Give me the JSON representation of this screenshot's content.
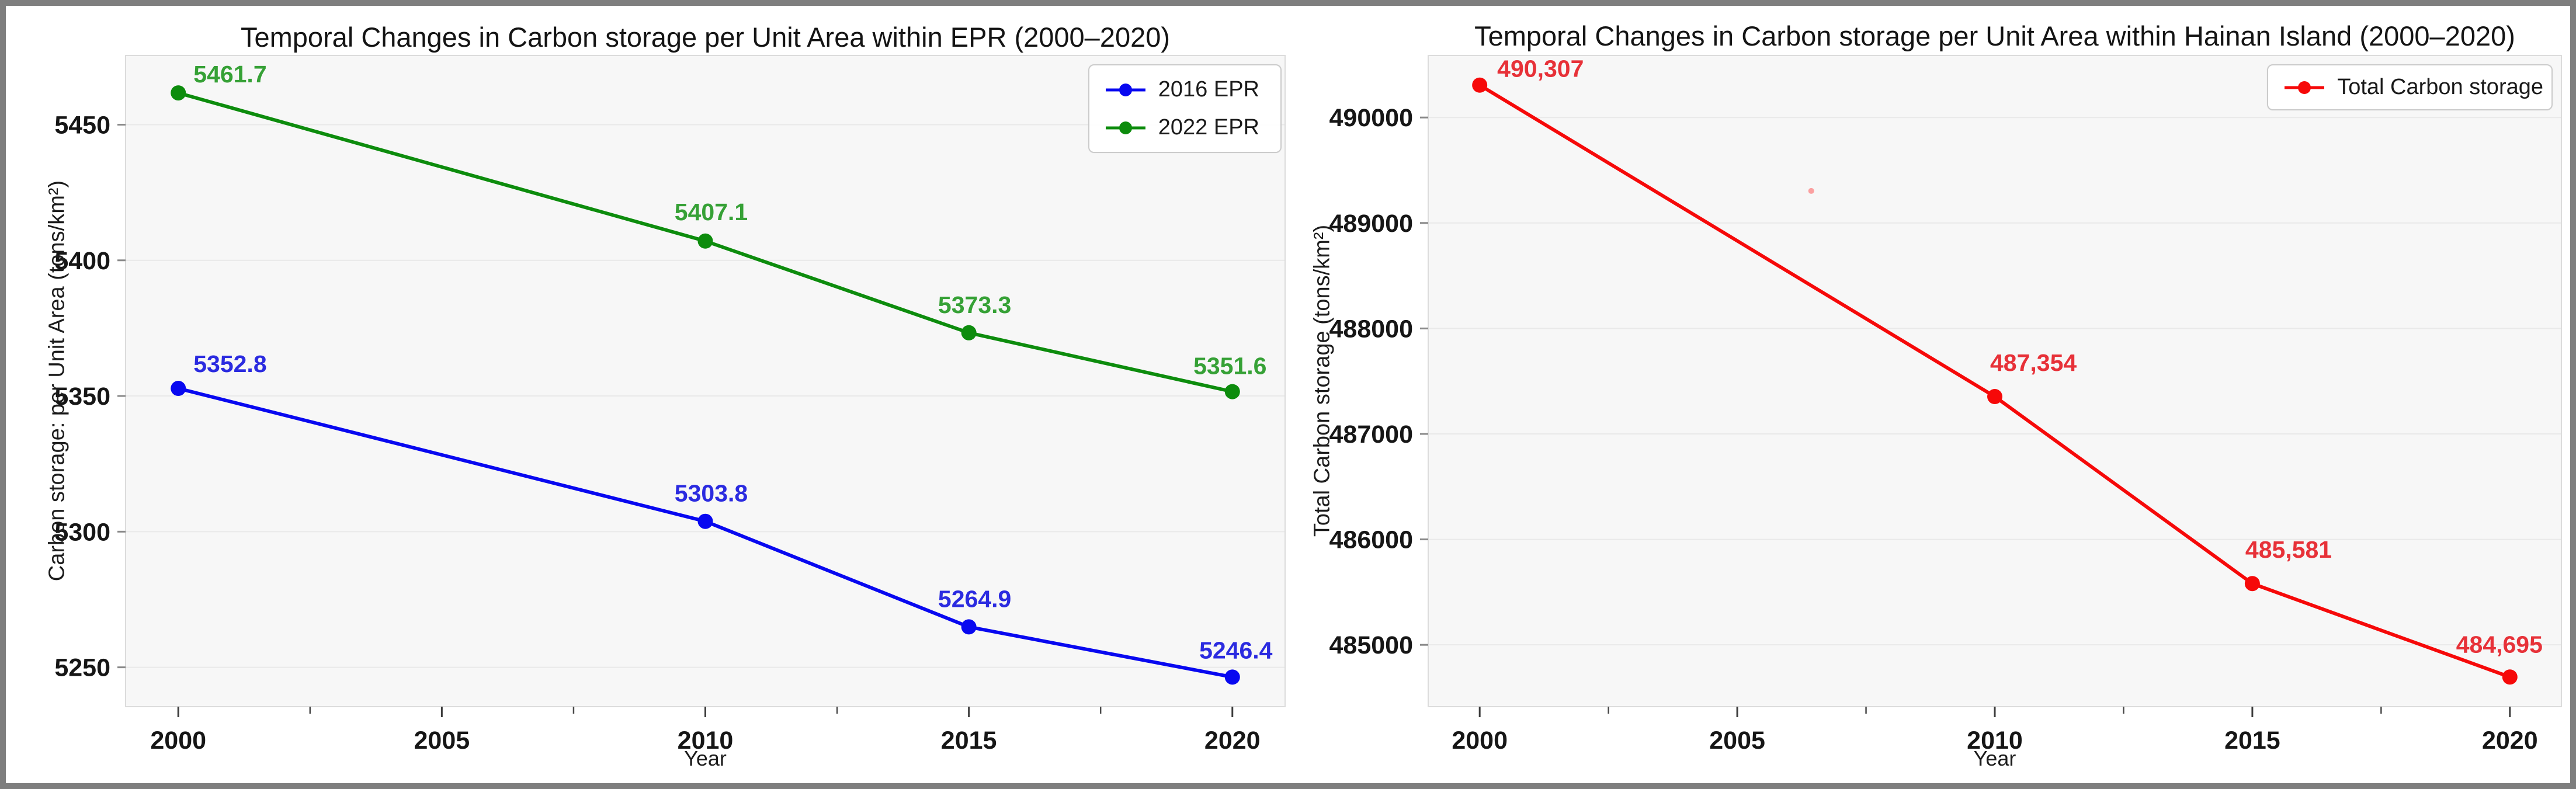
{
  "page": {
    "frame_color": "#7e7e7e",
    "background": "#ffffff"
  },
  "chart_data": [
    {
      "type": "line",
      "title": "Temporal Changes in Carbon storage per Unit Area within EPR (2000–2020)",
      "xlabel": "Year",
      "ylabel": "Carbon storage: per Unit Area (tons/km²)",
      "x": [
        2000,
        2010,
        2015,
        2020
      ],
      "xlim": [
        1999,
        2021
      ],
      "ylim": [
        5235.5,
        5475.5
      ],
      "xticks": [
        2000,
        2005,
        2010,
        2015,
        2020
      ],
      "minor_xticks": [
        2002.5,
        2007.5,
        2012.5,
        2017.5
      ],
      "yticks": [
        5250,
        5300,
        5350,
        5400,
        5450
      ],
      "grid": "horizontal",
      "legend_position": "top-right",
      "plot_bg": "#f7f7f7",
      "series": [
        {
          "name": "2016 EPR",
          "color": "#0808f0",
          "label_color": "#2b2be0",
          "values": [
            5352.8,
            5303.8,
            5264.9,
            5246.4
          ],
          "labels": [
            "5352.8",
            "5303.8",
            "5264.9",
            "5246.4"
          ],
          "label_anchors": [
            "start",
            "middle",
            "middle",
            "middle"
          ],
          "label_dx": [
            26,
            10,
            10,
            6
          ],
          "label_dy": [
            -28,
            -34,
            -34,
            -32
          ]
        },
        {
          "name": "2022 EPR",
          "color": "#0d8c0d",
          "label_color": "#36a136",
          "values": [
            5461.7,
            5407.1,
            5373.3,
            5351.6
          ],
          "labels": [
            "5461.7",
            "5407.1",
            "5373.3",
            "5351.6"
          ],
          "label_anchors": [
            "start",
            "middle",
            "middle",
            "middle"
          ],
          "label_dx": [
            26,
            10,
            10,
            -4
          ],
          "label_dy": [
            -18,
            -36,
            -34,
            -30
          ]
        }
      ]
    },
    {
      "type": "line",
      "title": "Temporal Changes in Carbon storage per Unit Area within Hainan Island (2000–2020)",
      "xlabel": "Year",
      "ylabel": "Total Carbon storage (tons/km²)",
      "x": [
        2000,
        2010,
        2015,
        2020
      ],
      "xlim": [
        1999,
        2021
      ],
      "ylim": [
        484414,
        490588
      ],
      "xticks": [
        2000,
        2005,
        2010,
        2015,
        2020
      ],
      "minor_xticks": [
        2002.5,
        2007.5,
        2012.5,
        2017.5
      ],
      "yticks": [
        485000,
        486000,
        487000,
        488000,
        489000,
        490000
      ],
      "grid": "horizontal",
      "legend_position": "top-right",
      "plot_bg": "#f7f7f7",
      "stray_mark": {
        "x_frac": 0.338,
        "y_frac": 0.208
      },
      "series": [
        {
          "name": "Total Carbon storage",
          "color": "#f60909",
          "label_color": "#e73138",
          "values": [
            490307,
            487354,
            485581,
            484695
          ],
          "labels": [
            "490,307",
            "487,354",
            "485,581",
            "484,695"
          ],
          "label_anchors": [
            "start",
            "start",
            "start",
            "middle"
          ],
          "label_dx": [
            30,
            -8,
            -12,
            -18
          ],
          "label_dy": [
            -14,
            -44,
            -44,
            -42
          ]
        }
      ]
    }
  ]
}
